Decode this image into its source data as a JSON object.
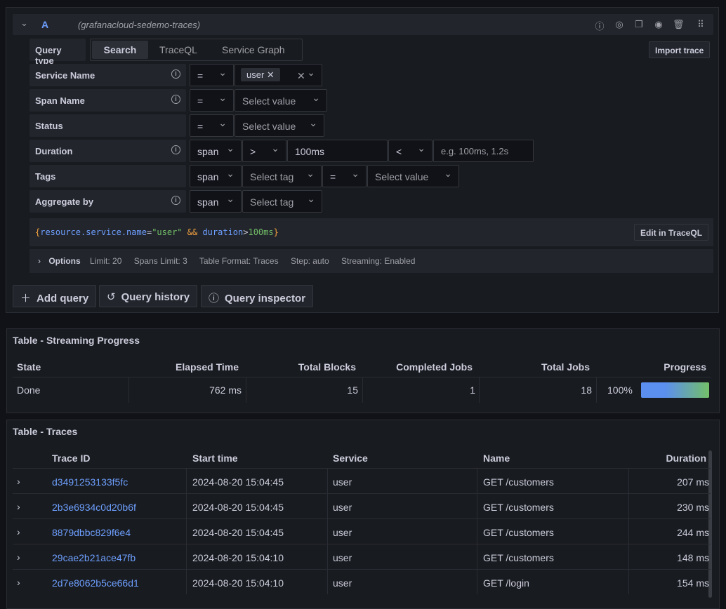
{
  "query": {
    "ref": "A",
    "datasource": "(grafanacloud-sedemo-traces)",
    "header_icons": [
      "help-icon",
      "target-icon",
      "copy-icon",
      "eye-icon",
      "trash-icon",
      "drag-handle-icon"
    ],
    "query_type_label": "Query type",
    "query_types": [
      "Search",
      "TraceQL",
      "Service Graph"
    ],
    "active_query_type": "Search",
    "import_trace": "Import trace",
    "rows": {
      "service_name": {
        "label": "Service Name",
        "op": "=",
        "value_tag": "user"
      },
      "span_name": {
        "label": "Span Name",
        "op": "=",
        "placeholder": "Select value"
      },
      "status": {
        "label": "Status",
        "op": "=",
        "placeholder": "Select value"
      },
      "duration": {
        "label": "Duration",
        "scope": "span",
        "op1": ">",
        "value1": "100ms",
        "op2": "<",
        "placeholder2": "e.g. 100ms, 1.2s"
      },
      "tags": {
        "label": "Tags",
        "scope": "span",
        "tag_placeholder": "Select tag",
        "op": "=",
        "value_placeholder": "Select value"
      },
      "aggregate": {
        "label": "Aggregate by",
        "scope": "span",
        "tag_placeholder": "Select tag"
      }
    },
    "traceql": {
      "open": "{",
      "attr": "resource.service.name",
      "eq": "=",
      "str": "\"user\"",
      "and": " && ",
      "dur": "duration",
      "gt": ">",
      "num": "100ms",
      "close": "}"
    },
    "edit_traceql": "Edit in TraceQL",
    "options": {
      "label": "Options",
      "limit": "Limit: 20",
      "spans_limit": "Spans Limit: 3",
      "table_format": "Table Format: Traces",
      "step": "Step: auto",
      "streaming": "Streaming: Enabled"
    },
    "add_query": "Add query",
    "query_history": "Query history",
    "query_inspector": "Query inspector"
  },
  "streaming": {
    "title": "Table - Streaming Progress",
    "columns": [
      "State",
      "Elapsed Time",
      "Total Blocks",
      "Completed Jobs",
      "Total Jobs",
      "Progress"
    ],
    "row": {
      "state": "Done",
      "elapsed": "762 ms",
      "blocks": "15",
      "completed": "1",
      "total": "18",
      "progress": "100%"
    },
    "progress_value": 100,
    "colors": {
      "bar_start": "#5b8ff0",
      "bar_end": "#73bf69",
      "link": "#6e9fff"
    }
  },
  "traces": {
    "title": "Table - Traces",
    "columns": [
      "Trace ID",
      "Start time",
      "Service",
      "Name",
      "Duration"
    ],
    "rows": [
      {
        "id": "d3491253133f5fc",
        "start": "2024-08-20 15:04:45",
        "service": "user",
        "name": "GET /customers",
        "duration": "207 ms"
      },
      {
        "id": "2b3e6934c0d20b6f",
        "start": "2024-08-20 15:04:45",
        "service": "user",
        "name": "GET /customers",
        "duration": "230 ms"
      },
      {
        "id": "8879dbbc829f6e4",
        "start": "2024-08-20 15:04:45",
        "service": "user",
        "name": "GET /customers",
        "duration": "244 ms"
      },
      {
        "id": "29cae2b21ace47fb",
        "start": "2024-08-20 15:04:10",
        "service": "user",
        "name": "GET /customers",
        "duration": "148 ms"
      },
      {
        "id": "2d7e8062b5ce66d1",
        "start": "2024-08-20 15:04:10",
        "service": "user",
        "name": "GET /login",
        "duration": "154 ms"
      }
    ]
  }
}
